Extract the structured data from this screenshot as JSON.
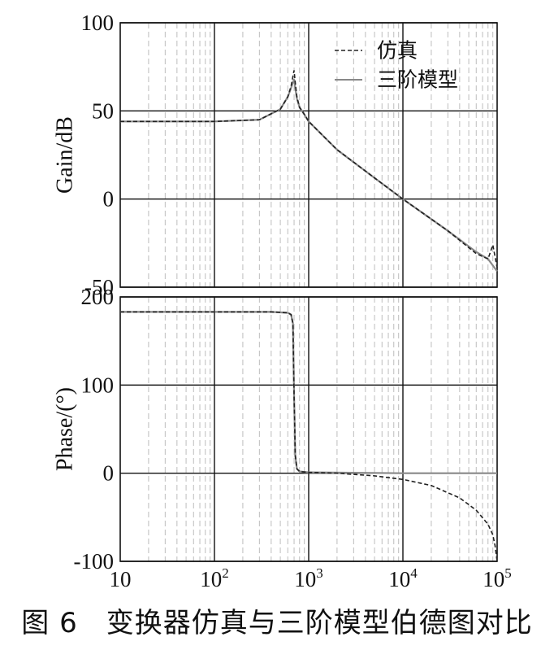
{
  "caption": "图 6　变换器仿真与三阶模型伯德图对比",
  "chart_data": [
    {
      "type": "line",
      "ylabel": "Gain/dB",
      "xscale": "log",
      "xlim": [
        10,
        100000
      ],
      "ylim": [
        -50,
        100
      ],
      "yticks": [
        "100",
        "50",
        "0",
        "-50"
      ],
      "grid": true,
      "legend": {
        "position": "top-right",
        "entries": [
          "仿真",
          "三阶模型"
        ]
      },
      "series": [
        {
          "name": "仿真",
          "style": "dashed",
          "color": "#222222",
          "x": [
            10,
            100,
            300,
            500,
            600,
            650,
            700,
            720,
            750,
            800,
            900,
            1000,
            2000,
            5000,
            10000,
            30000,
            60000,
            80000,
            90000,
            100000
          ],
          "y": [
            44,
            44,
            45,
            51,
            58,
            64,
            73,
            66,
            58,
            52,
            48,
            44,
            28,
            12,
            0,
            -18,
            -31,
            -34,
            -26,
            -39
          ]
        },
        {
          "name": "三阶模型",
          "style": "solid",
          "color": "#888888",
          "x": [
            10,
            100,
            300,
            500,
            600,
            650,
            700,
            720,
            750,
            800,
            900,
            1000,
            2000,
            5000,
            10000,
            30000,
            60000,
            80000,
            100000
          ],
          "y": [
            44,
            44,
            45,
            51,
            58,
            63,
            68,
            63,
            57,
            52,
            48,
            44,
            28,
            12,
            0,
            -18,
            -30,
            -34,
            -41
          ]
        }
      ]
    },
    {
      "type": "line",
      "ylabel": "Phase/(°)",
      "xscale": "log",
      "xlim": [
        10,
        100000
      ],
      "ylim": [
        -100,
        200
      ],
      "yticks": [
        "200",
        "100",
        "0",
        "-100"
      ],
      "xticks": [
        {
          "base": "10",
          "exp": ""
        },
        {
          "base": "10",
          "exp": "2"
        },
        {
          "base": "10",
          "exp": "3"
        },
        {
          "base": "10",
          "exp": "4"
        },
        {
          "base": "10",
          "exp": "5"
        }
      ],
      "grid": true,
      "series": [
        {
          "name": "仿真",
          "style": "dashed",
          "color": "#222222",
          "x": [
            10,
            100,
            400,
            600,
            650,
            680,
            700,
            720,
            750,
            800,
            1000,
            2000,
            5000,
            10000,
            20000,
            40000,
            60000,
            80000,
            90000,
            95000,
            100000
          ],
          "y": [
            183,
            183,
            183,
            182,
            180,
            170,
            90,
            20,
            5,
            2,
            1,
            0,
            -3,
            -7,
            -14,
            -28,
            -42,
            -58,
            -70,
            -82,
            -100
          ]
        },
        {
          "name": "三阶模型",
          "style": "solid",
          "color": "#888888",
          "x": [
            10,
            100,
            400,
            600,
            650,
            680,
            700,
            720,
            750,
            800,
            1000,
            10000,
            100000
          ],
          "y": [
            183,
            183,
            183,
            182,
            180,
            170,
            90,
            20,
            5,
            2,
            1,
            0,
            0
          ]
        }
      ]
    }
  ]
}
